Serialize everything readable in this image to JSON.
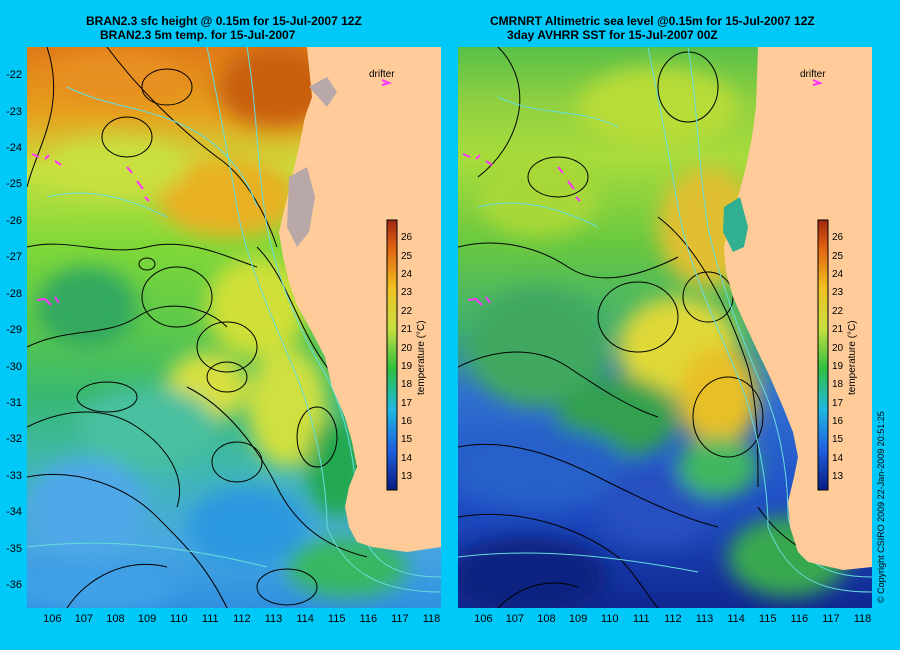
{
  "left": {
    "title_line1": "BRAN2.3 sfc height @ 0.15m for 15-Jul-2007 12Z",
    "title_line2": "BRAN2.3 5m temp. for 15-Jul-2007",
    "drifter_label": "drifter"
  },
  "right": {
    "title_line1": "CMRNRT Altimetric sea level  @0.15m  for 15-Jul-2007 12Z",
    "title_line2": "3day AVHRR SST for 15-Jul-2007 00Z",
    "drifter_label": "drifter"
  },
  "axes": {
    "lat_ticks": [
      "-22",
      "-23",
      "-24",
      "-25",
      "-26",
      "-27",
      "-28",
      "-29",
      "-30",
      "-31",
      "-32",
      "-33",
      "-34",
      "-35",
      "-36"
    ],
    "lon_ticks": [
      "106",
      "107",
      "108",
      "109",
      "110",
      "111",
      "112",
      "113",
      "114",
      "115",
      "116",
      "117",
      "118"
    ],
    "lat_range": [
      -36.6,
      -21.2
    ],
    "lon_range": [
      105.2,
      118.3
    ]
  },
  "colorbar": {
    "title": "temperature (°C)",
    "ticks": [
      "26",
      "25",
      "24",
      "23",
      "22",
      "21",
      "20",
      "19",
      "18",
      "17",
      "16",
      "15",
      "14",
      "13"
    ],
    "range": [
      12.3,
      27
    ]
  },
  "copyright": "© Copyright CSIRO 2009   22-Jan-2009 20:51:25",
  "colors": {
    "background": "#00c8f8",
    "land": "#ffcc99",
    "contour": "#000000",
    "bathymetry": "#66dddd",
    "drifter": "#ff33ff"
  }
}
